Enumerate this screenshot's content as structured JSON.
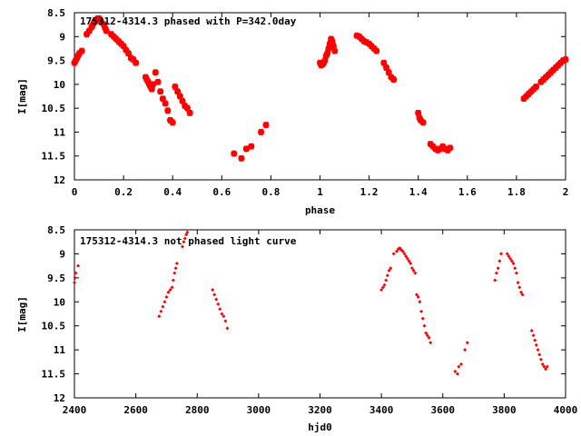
{
  "chart_data": [
    {
      "type": "scatter",
      "title": "175312-4314.3 phased with P=342.0day",
      "xlabel": "phase",
      "ylabel": "I[mag]",
      "xlim": [
        0,
        2
      ],
      "ylim": [
        8.5,
        12
      ],
      "y_inverted": true,
      "xticks": [
        "0",
        "0.2",
        "0.4",
        "0.6",
        "0.8",
        "1",
        "1.2",
        "1.4",
        "1.6",
        "1.8",
        "2"
      ],
      "yticks": [
        "8.5",
        "9",
        "9.5",
        "10",
        "10.5",
        "11",
        "11.5",
        "12"
      ],
      "marker_color": "#ff0000",
      "grid": false,
      "series": [
        {
          "x": [
            0.0,
            0.005,
            0.01,
            0.015,
            0.02,
            0.03,
            0.05,
            0.06,
            0.07,
            0.075,
            0.08,
            0.085,
            0.09,
            0.095,
            0.1,
            0.105,
            0.11,
            0.12,
            0.125,
            0.13,
            0.15,
            0.16,
            0.17,
            0.18,
            0.19,
            0.2,
            0.21,
            0.22,
            0.23,
            0.24,
            0.25,
            0.29,
            0.295,
            0.3,
            0.305,
            0.31,
            0.315,
            0.32,
            0.33,
            0.34,
            0.35,
            0.36,
            0.37,
            0.38,
            0.39,
            0.4,
            0.41,
            0.42,
            0.43,
            0.44,
            0.45,
            0.46,
            0.47,
            0.65,
            0.68,
            0.7,
            0.72,
            0.76,
            0.78,
            1.0,
            1.005,
            1.01,
            1.015,
            1.02,
            1.025,
            1.03,
            1.035,
            1.04,
            1.045,
            1.05,
            1.055,
            1.06,
            1.15,
            1.16,
            1.17,
            1.18,
            1.19,
            1.2,
            1.21,
            1.22,
            1.23,
            1.26,
            1.27,
            1.28,
            1.29,
            1.3,
            1.4,
            1.405,
            1.41,
            1.42,
            1.45,
            1.46,
            1.47,
            1.48,
            1.49,
            1.5,
            1.51,
            1.52,
            1.53,
            1.83,
            1.84,
            1.85,
            1.86,
            1.87,
            1.88,
            1.9,
            1.91,
            1.92,
            1.93,
            1.94,
            1.95,
            1.96,
            1.97,
            1.98,
            1.99,
            2.0
          ],
          "y": [
            9.55,
            9.5,
            9.45,
            9.4,
            9.35,
            9.3,
            8.95,
            8.88,
            8.8,
            8.75,
            8.7,
            8.68,
            8.65,
            8.62,
            8.62,
            8.65,
            8.7,
            8.75,
            8.82,
            8.88,
            8.95,
            9.0,
            9.05,
            9.1,
            9.15,
            9.2,
            9.28,
            9.35,
            9.45,
            9.48,
            9.55,
            9.85,
            9.9,
            9.95,
            10.0,
            10.05,
            10.1,
            10.0,
            9.75,
            9.95,
            10.15,
            10.3,
            10.4,
            10.55,
            10.75,
            10.8,
            10.05,
            10.15,
            10.25,
            10.35,
            10.45,
            10.5,
            10.6,
            11.45,
            11.55,
            11.35,
            11.3,
            11.0,
            10.85,
            9.55,
            9.6,
            9.58,
            9.55,
            9.5,
            9.4,
            9.35,
            9.25,
            9.15,
            9.05,
            9.1,
            9.2,
            9.3,
            8.98,
            9.0,
            9.05,
            9.1,
            9.12,
            9.15,
            9.2,
            9.25,
            9.3,
            9.55,
            9.65,
            9.75,
            9.85,
            9.9,
            10.6,
            10.7,
            10.75,
            10.8,
            11.25,
            11.3,
            11.35,
            11.38,
            11.35,
            11.3,
            11.35,
            11.38,
            11.33,
            10.3,
            10.25,
            10.2,
            10.15,
            10.1,
            10.05,
            9.95,
            9.9,
            9.85,
            9.8,
            9.75,
            9.7,
            9.65,
            9.6,
            9.55,
            9.5,
            9.48
          ]
        }
      ]
    },
    {
      "type": "scatter",
      "title": "175312-4314.3 not phased light curve",
      "xlabel": "hjd0",
      "ylabel": "I[mag]",
      "xlim": [
        2400,
        4000
      ],
      "ylim": [
        8.5,
        12
      ],
      "y_inverted": true,
      "xticks": [
        "2400",
        "2600",
        "2800",
        "3000",
        "3200",
        "3400",
        "3600",
        "3800",
        "4000"
      ],
      "yticks": [
        "8.5",
        "9",
        "9.5",
        "10",
        "10.5",
        "11",
        "11.5",
        "12"
      ],
      "marker_color": "#ff0000",
      "grid": false,
      "series": [
        {
          "x": [
            2400,
            2402,
            2404,
            2412,
            2676,
            2682,
            2688,
            2694,
            2700,
            2706,
            2712,
            2718,
            2722,
            2726,
            2730,
            2734,
            2752,
            2756,
            2760,
            2764,
            2768,
            2850,
            2856,
            2862,
            2868,
            2874,
            2880,
            2886,
            2892,
            2898,
            3400,
            3405,
            3410,
            3415,
            3420,
            3425,
            3430,
            3440,
            3450,
            3455,
            3460,
            3465,
            3470,
            3475,
            3480,
            3485,
            3490,
            3495,
            3500,
            3505,
            3510,
            3515,
            3520,
            3525,
            3530,
            3535,
            3540,
            3545,
            3550,
            3555,
            3560,
            3640,
            3648,
            3652,
            3660,
            3672,
            3680,
            3770,
            3775,
            3780,
            3785,
            3790,
            3810,
            3815,
            3820,
            3825,
            3830,
            3835,
            3840,
            3845,
            3850,
            3855,
            3860,
            3890,
            3895,
            3900,
            3905,
            3910,
            3915,
            3920,
            3925,
            3930,
            3935,
            3940
          ],
          "y": [
            9.6,
            9.5,
            9.4,
            9.25,
            10.3,
            10.2,
            10.1,
            10.0,
            9.9,
            9.8,
            9.75,
            9.7,
            9.55,
            9.4,
            9.3,
            9.2,
            8.85,
            8.75,
            8.68,
            8.6,
            8.55,
            9.75,
            9.85,
            9.95,
            10.05,
            10.15,
            10.25,
            10.3,
            10.4,
            10.55,
            9.75,
            9.7,
            9.65,
            9.55,
            9.45,
            9.35,
            9.3,
            9.0,
            8.95,
            8.9,
            8.88,
            8.92,
            8.95,
            9.0,
            9.05,
            9.1,
            9.15,
            9.2,
            9.3,
            9.35,
            9.4,
            9.85,
            9.9,
            10.0,
            10.2,
            10.35,
            10.5,
            10.65,
            10.7,
            10.75,
            10.85,
            11.45,
            11.5,
            11.35,
            11.3,
            11.0,
            10.85,
            9.55,
            9.4,
            9.3,
            9.15,
            9.0,
            9.0,
            9.05,
            9.1,
            9.15,
            9.2,
            9.3,
            9.4,
            9.6,
            9.7,
            9.8,
            9.85,
            10.6,
            10.7,
            10.8,
            10.9,
            11.0,
            11.1,
            11.2,
            11.3,
            11.35,
            11.4,
            11.35
          ]
        }
      ]
    }
  ]
}
